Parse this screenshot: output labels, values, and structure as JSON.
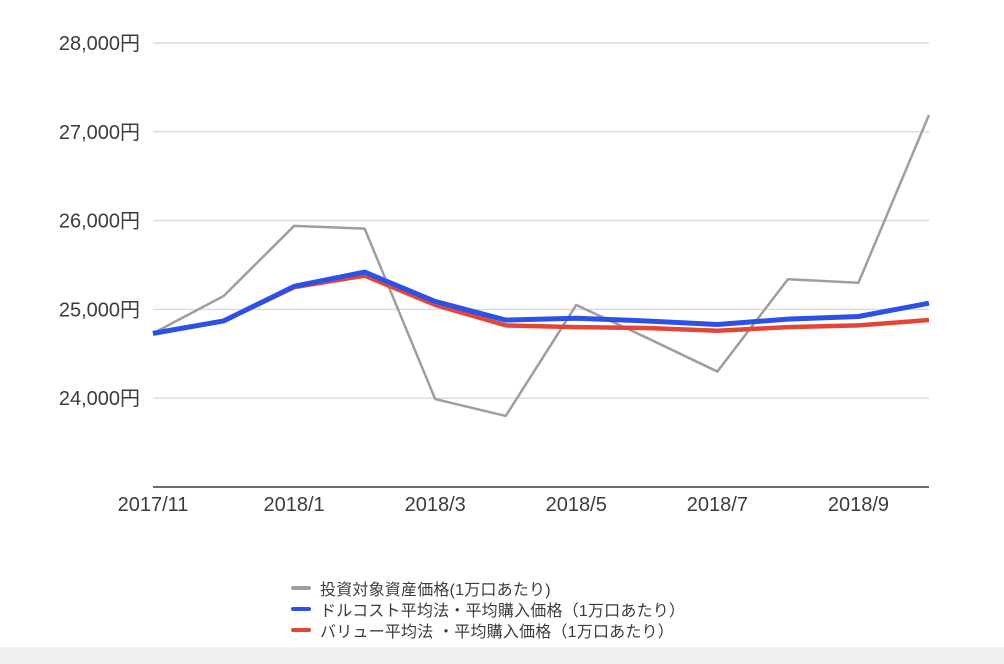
{
  "page": {
    "background_color": "#ffffff",
    "footer_strip_color": "#f0f0f1",
    "text_color": "#3c3c3c",
    "gridline_color": "#d9d9d9",
    "axis_line_color": "#6e6e6e"
  },
  "chart_data": {
    "type": "line",
    "title": "",
    "xlabel": "",
    "ylabel": "",
    "grid": true,
    "legend_position": "bottom-left",
    "ylim": [
      23000,
      28000
    ],
    "categories": [
      "2017/11",
      "2017/12",
      "2018/1",
      "2018/2",
      "2018/3",
      "2018/4",
      "2018/5",
      "2018/6",
      "2018/7",
      "2018/8",
      "2018/9",
      "2018/10"
    ],
    "x_tick_labels": [
      "2017/11",
      "2018/1",
      "2018/3",
      "2018/5",
      "2018/7",
      "2018/9"
    ],
    "x_tick_indices": [
      0,
      2,
      4,
      6,
      8,
      10
    ],
    "y_ticks": [
      {
        "value": 28000,
        "label": "28,000円"
      },
      {
        "value": 27000,
        "label": "27,000円"
      },
      {
        "value": 26000,
        "label": "26,000円"
      },
      {
        "value": 25000,
        "label": "25,000円"
      },
      {
        "value": 24000,
        "label": "24,000円"
      }
    ],
    "series": [
      {
        "name": "投資対象資産価格(1万口あたり)",
        "color": "#9e9e9e",
        "width": 2.5,
        "values": [
          24730,
          25150,
          25940,
          25910,
          23990,
          23800,
          25050,
          24680,
          24300,
          25340,
          25300,
          27190
        ]
      },
      {
        "name": "ドルコスト平均法・平均購入価格（1万口あたり）",
        "color": "#2d50e6",
        "width": 5,
        "values": [
          24730,
          24870,
          25260,
          25420,
          25090,
          24880,
          24900,
          24870,
          24830,
          24890,
          24920,
          25070
        ]
      },
      {
        "name": "バリュー平均法 ・平均購入価格（1万口あたり）",
        "color": "#e54537",
        "width": 4.5,
        "values": [
          24730,
          24870,
          25250,
          25380,
          25050,
          24820,
          24800,
          24790,
          24760,
          24800,
          24820,
          24880
        ]
      }
    ]
  }
}
